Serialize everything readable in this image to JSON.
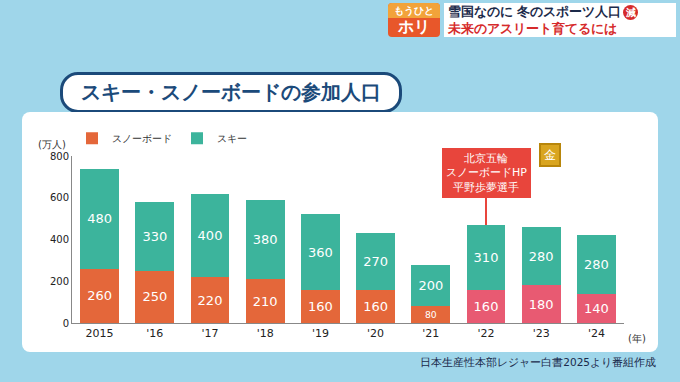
{
  "header": {
    "logo": [
      "もうひと",
      "ホリ"
    ],
    "headline": [
      "雪国なのに 冬のスポーツ人口",
      "未来のアスリート育てるには"
    ],
    "badge": "減"
  },
  "chart_data": {
    "type": "bar",
    "stacked": true,
    "title": "スキー・スノーボードの参加人口",
    "ylabel": "(万人)",
    "xlabel": "(年)",
    "categories": [
      "2015",
      "'16",
      "'17",
      "'18",
      "'19",
      "'20",
      "'21",
      "'22",
      "'23",
      "'24"
    ],
    "series": [
      {
        "name": "スノーボード",
        "colors": [
          "#e4673a",
          "#e4673a",
          "#e4673a",
          "#e4673a",
          "#e4673a",
          "#e4673a",
          "#e4673a",
          "#e85a72",
          "#e85a72",
          "#e85a72"
        ],
        "values": [
          260,
          250,
          220,
          210,
          160,
          160,
          80,
          160,
          180,
          140
        ]
      },
      {
        "name": "スキー",
        "color": "#3cb49c",
        "values": [
          480,
          330,
          400,
          380,
          360,
          270,
          200,
          310,
          280,
          280
        ]
      }
    ],
    "ylim": [
      0,
      800
    ],
    "yticks": [
      0,
      200,
      400,
      600,
      800
    ],
    "grid": false,
    "legend": "upper left",
    "data_labels": true,
    "annotations": [
      {
        "text_lines": [
          "北京五輪",
          "スノーボードHP",
          "平野歩夢選手"
        ],
        "category": "'22",
        "badge": "金"
      }
    ],
    "source": "日本生産性本部レジャー白書2025より番組作成"
  }
}
